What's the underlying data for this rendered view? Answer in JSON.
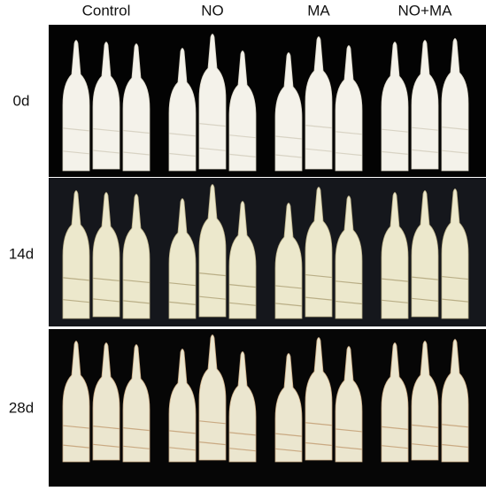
{
  "columns": [
    "Control",
    "NO",
    "MA",
    "NO+MA"
  ],
  "rows": [
    "0d",
    "14d",
    "28d"
  ]
}
